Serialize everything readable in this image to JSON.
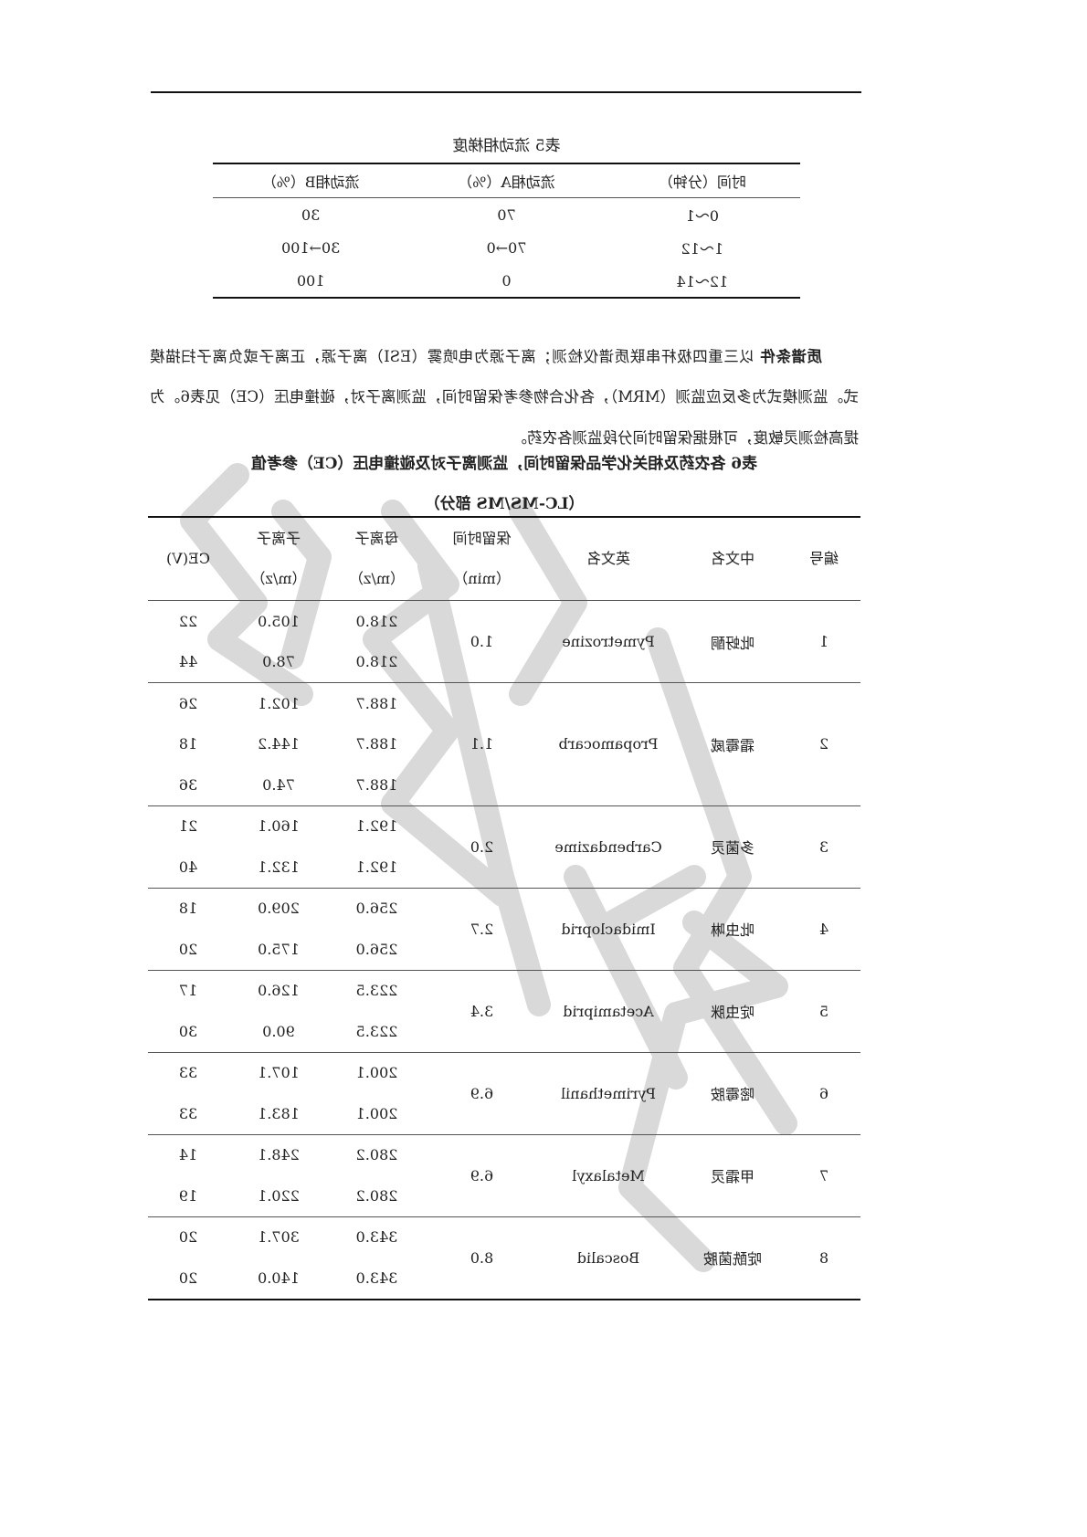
{
  "table5": {
    "title": "表5 流动相梯度",
    "headers": [
      "时间（分钟）",
      "流动相A（%）",
      "流动相B（%）"
    ],
    "rows": [
      [
        "0～1",
        "70",
        "30"
      ],
      [
        "1～12",
        "70→0",
        "30→100"
      ],
      [
        "12～14",
        "0",
        "100"
      ]
    ]
  },
  "paragraph": {
    "lead": "质谱条件",
    "text": " 以三重四极杆串联质谱仪检测；离子源为电喷雾（ESI）离子源，正离子或负离子扫描模式。监测模式为多反应监测（MRM），各化合物参考保留时间，监测离子对，碰撞电压（CE）见表6。为提高检测灵敏度，可根据保留时间分段监测各农药。"
  },
  "table6": {
    "title": "表6 各农药及相关化学品保留时间，监测离子对及碰撞电压（CE）参考值",
    "subtitle": "（LC-MS/MS 部分）",
    "headers": {
      "no": "编号",
      "cn": "中文名",
      "en": "英文名",
      "rt": "保留时间",
      "rt_unit": "（min）",
      "parent": "母离子",
      "parent_unit": "（m/z）",
      "child": "子离子",
      "child_unit": "（m/z）",
      "ce": "CE(V)"
    },
    "rows": [
      {
        "no": "1",
        "cn": "吡蚜酮",
        "en": "Pymetrozine",
        "rt": "1.0",
        "ions": [
          [
            "218.0",
            "105.0",
            "22"
          ],
          [
            "218.0",
            "78.0",
            "44"
          ]
        ]
      },
      {
        "no": "2",
        "cn": "霜霉威",
        "en": "Propamocarb",
        "rt": "1.1",
        "ions": [
          [
            "188.7",
            "102.1",
            "26"
          ],
          [
            "188.7",
            "144.2",
            "18"
          ],
          [
            "188.7",
            "74.0",
            "36"
          ]
        ]
      },
      {
        "no": "3",
        "cn": "多菌灵",
        "en": "Carbendazime",
        "rt": "2.0",
        "ions": [
          [
            "192.1",
            "160.1",
            "21"
          ],
          [
            "192.1",
            "132.1",
            "40"
          ]
        ]
      },
      {
        "no": "4",
        "cn": "吡虫啉",
        "en": "Imidacloprid",
        "rt": "2.7",
        "ions": [
          [
            "256.0",
            "209.0",
            "18"
          ],
          [
            "256.0",
            "175.0",
            "20"
          ]
        ]
      },
      {
        "no": "5",
        "cn": "啶虫脒",
        "en": "Acetamiprid",
        "rt": "3.4",
        "ions": [
          [
            "223.5",
            "126.0",
            "17"
          ],
          [
            "223.5",
            "90.0",
            "30"
          ]
        ]
      },
      {
        "no": "6",
        "cn": "嘧霉胺",
        "en": "Pyrimethanil",
        "rt": "6.9",
        "ions": [
          [
            "200.1",
            "107.1",
            "33"
          ],
          [
            "200.1",
            "183.1",
            "33"
          ]
        ]
      },
      {
        "no": "7",
        "cn": "甲霜灵",
        "en": "Metalaxyl",
        "rt": "6.9",
        "ions": [
          [
            "280.2",
            "248.1",
            "14"
          ],
          [
            "280.2",
            "220.1",
            "19"
          ]
        ]
      },
      {
        "no": "8",
        "cn": "啶酰菌胺",
        "en": "Boscalid",
        "rt": "8.0",
        "ions": [
          [
            "343.0",
            "307.1",
            "20"
          ],
          [
            "343.0",
            "140.0",
            "20"
          ]
        ]
      }
    ]
  },
  "colors": {
    "watermark": "#d9d9d9",
    "text": "#222222"
  }
}
